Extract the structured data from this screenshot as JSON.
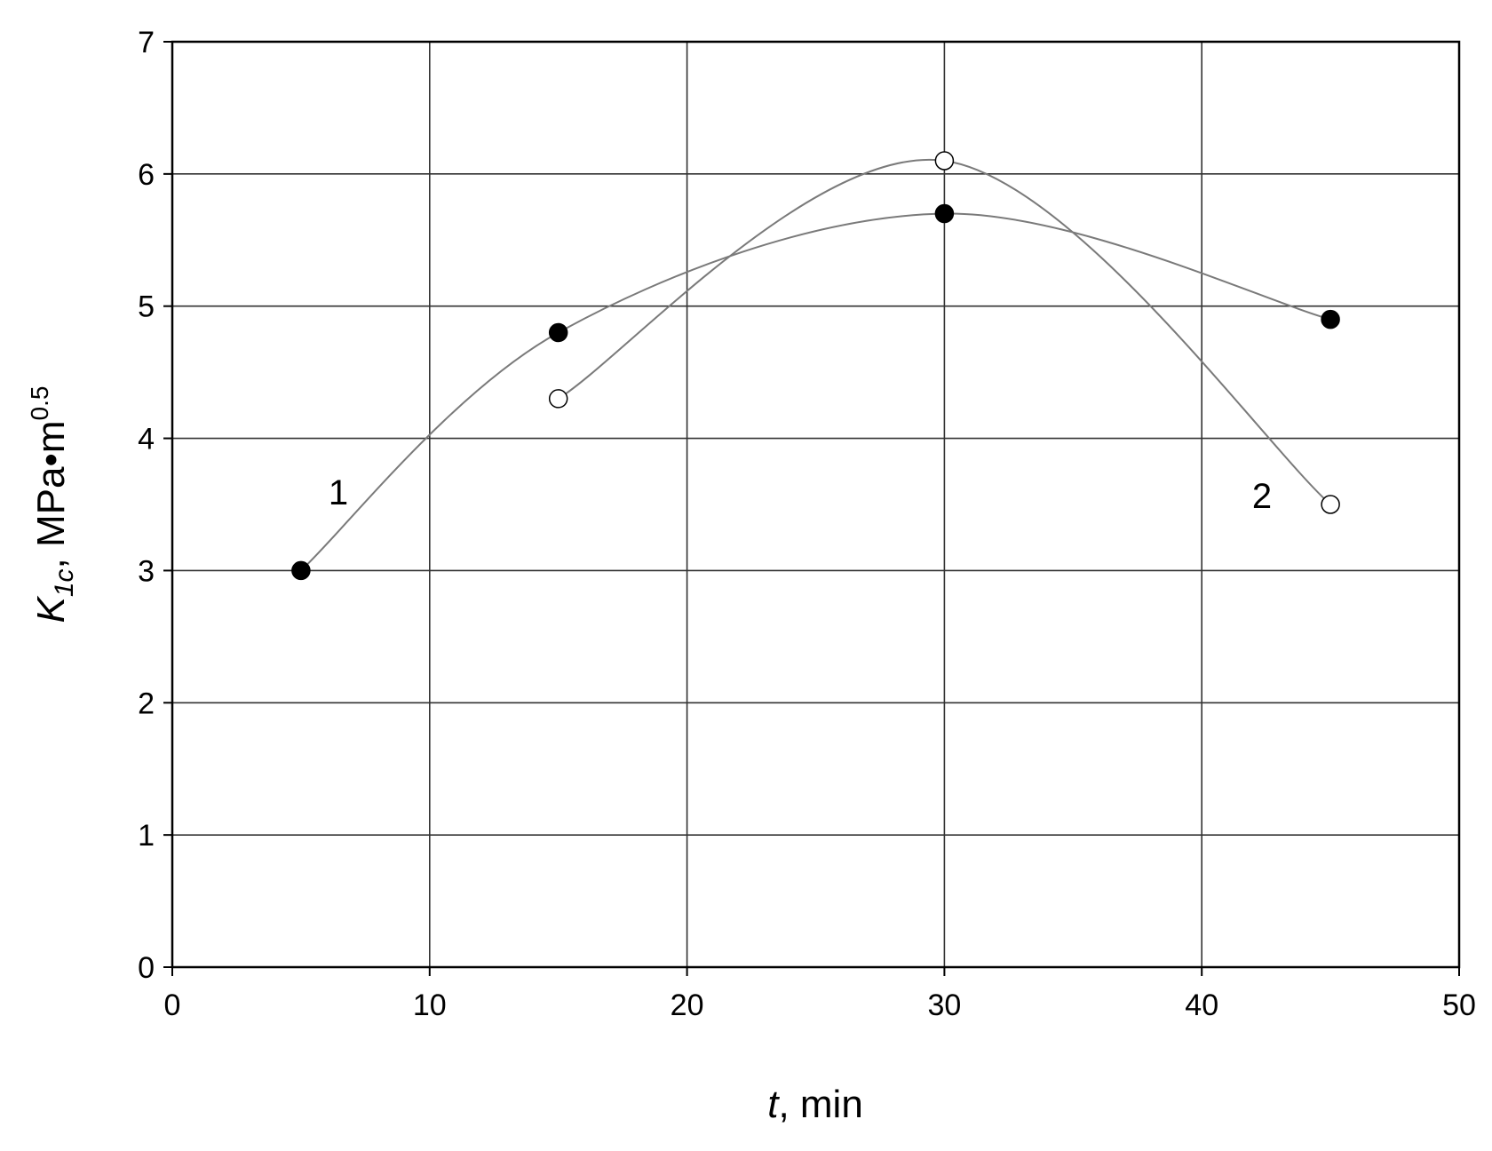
{
  "chart_data": {
    "type": "line",
    "xlabel": [
      "t",
      ", min"
    ],
    "ylabel": [
      "K",
      "1c",
      ", MPa•m",
      "0.5"
    ],
    "xlim": [
      0,
      50
    ],
    "xticks": [
      0,
      10,
      20,
      30,
      40,
      50
    ],
    "ylim": [
      0,
      7
    ],
    "yticks": [
      0,
      1,
      2,
      3,
      4,
      5,
      6,
      7
    ],
    "grid": true,
    "line_color": "#7a7a7a",
    "series": [
      {
        "name": "1",
        "color": "#000000",
        "filled": true,
        "x": [
          5,
          15,
          30,
          45
        ],
        "values": [
          3,
          4.8,
          5.7,
          4.9
        ]
      },
      {
        "name": "2",
        "color": "#000000",
        "filled": false,
        "x": [
          15,
          30,
          45
        ],
        "values": [
          4.3,
          6.1,
          3.5
        ]
      }
    ]
  }
}
